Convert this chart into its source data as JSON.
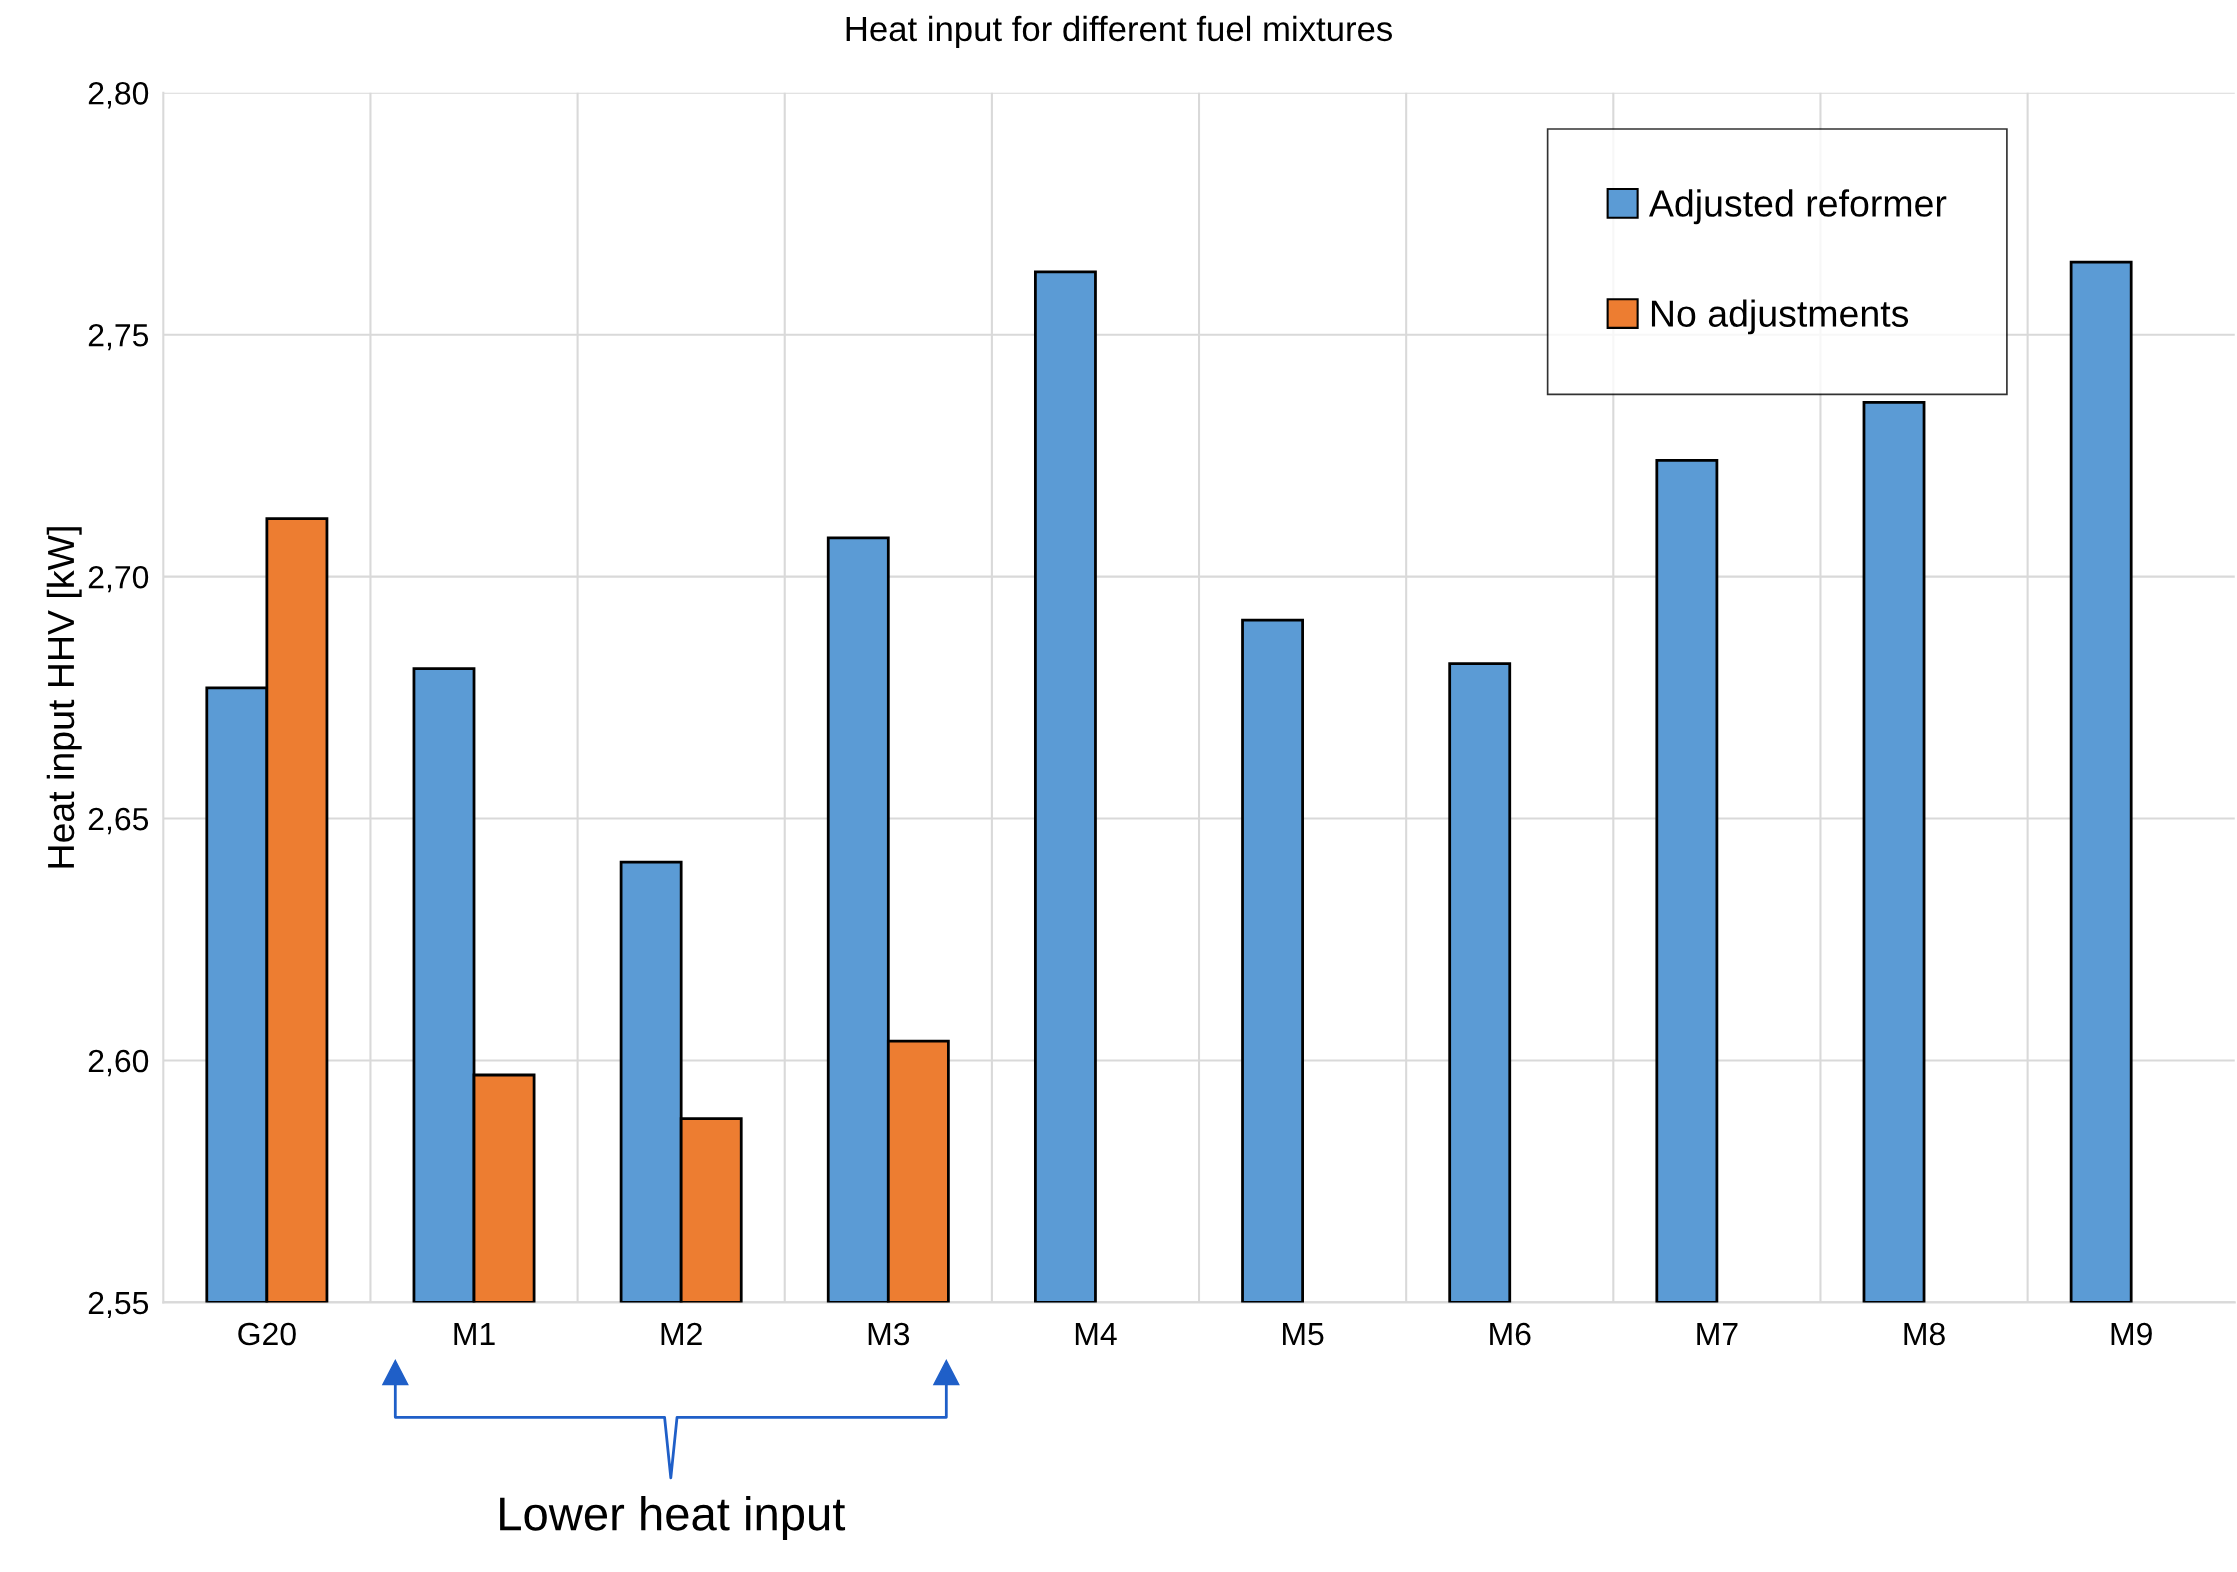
{
  "chart_data": {
    "type": "bar",
    "title": "Heat input for different fuel mixtures",
    "ylabel": "Heat input HHV [kW]",
    "categories": [
      "G20",
      "M1",
      "M2",
      "M3",
      "M4",
      "M5",
      "M6",
      "M7",
      "M8",
      "M9"
    ],
    "series": [
      {
        "name": "Adjusted reformer",
        "color": "#5b9bd5",
        "values": [
          2.677,
          2.681,
          2.641,
          2.708,
          2.763,
          2.691,
          2.682,
          2.724,
          2.736,
          2.765
        ]
      },
      {
        "name": "No adjustments",
        "color": "#ed7d31",
        "values": [
          2.712,
          2.597,
          2.588,
          2.604,
          null,
          null,
          null,
          null,
          null,
          null
        ]
      }
    ],
    "ylim": [
      2.55,
      2.8
    ],
    "yticks": [
      {
        "value": 2.55,
        "label": "2,55"
      },
      {
        "value": 2.6,
        "label": "2,60"
      },
      {
        "value": 2.65,
        "label": "2,65"
      },
      {
        "value": 2.7,
        "label": "2,70"
      },
      {
        "value": 2.75,
        "label": "2,75"
      },
      {
        "value": 2.8,
        "label": "2,80"
      }
    ],
    "grid": true,
    "legend": "top right",
    "annotations": [
      "Lower heat input"
    ]
  }
}
